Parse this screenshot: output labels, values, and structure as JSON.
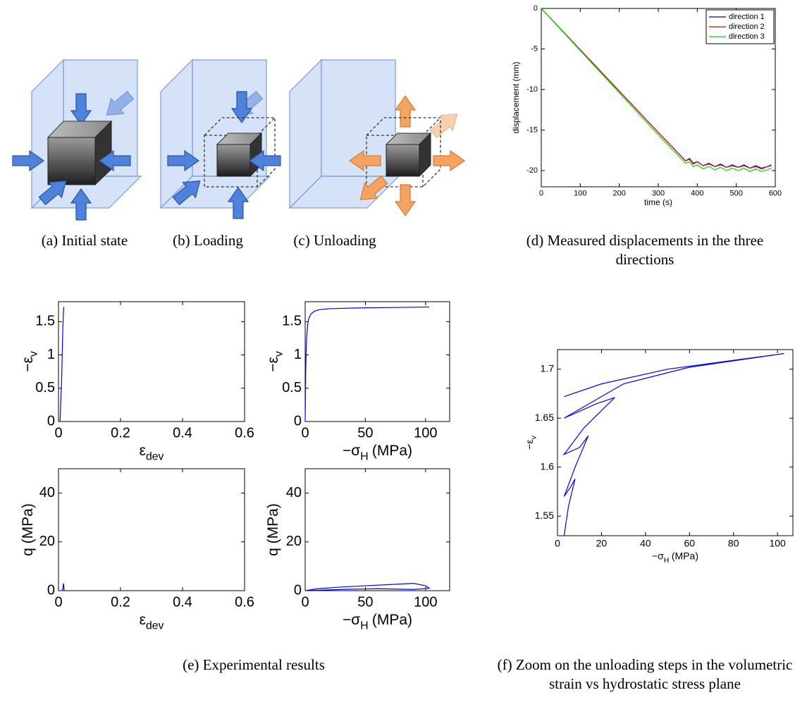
{
  "captions": {
    "a": "(a)  Initial state",
    "b": "(b)  Loading",
    "c": "(c)  Unloading",
    "d": "(d)  Measured displacements in the three directions",
    "e": "(e)  Experimental results",
    "f": "(f)  Zoom on the unloading steps in the volumetric strain vs hydrostatic stress plane"
  },
  "chart_data": [
    {
      "type": "line",
      "xlabel": "time (s)",
      "ylabel": "displacement (mm)",
      "x": [
        0,
        100,
        200,
        300,
        370,
        380,
        390,
        400,
        415,
        430,
        445,
        460,
        475,
        490,
        505,
        520,
        535,
        550,
        565,
        580,
        590
      ],
      "series": [
        {
          "name": "direction 1",
          "color": "#0000cc",
          "values": [
            0,
            -5.1,
            -10.2,
            -15.3,
            -18.8,
            -18.5,
            -19.1,
            -18.9,
            -19.4,
            -19.1,
            -19.5,
            -19.2,
            -19.6,
            -19.3,
            -19.6,
            -19.3,
            -19.7,
            -19.4,
            -19.7,
            -19.5,
            -19.3
          ]
        },
        {
          "name": "direction 2",
          "color": "#ee0000",
          "values": [
            0,
            -5.1,
            -10.2,
            -15.3,
            -18.8,
            -18.6,
            -19.2,
            -18.9,
            -19.4,
            -19.2,
            -19.5,
            -19.3,
            -19.6,
            -19.4,
            -19.6,
            -19.4,
            -19.7,
            -19.5,
            -19.8,
            -19.5,
            -19.4
          ]
        },
        {
          "name": "direction 3",
          "color": "#00dd00",
          "values": [
            0,
            -5.2,
            -10.4,
            -15.6,
            -19.1,
            -18.9,
            -19.5,
            -19.3,
            -19.8,
            -19.5,
            -19.9,
            -19.6,
            -20.0,
            -19.7,
            -20.0,
            -19.7,
            -20.1,
            -19.8,
            -20.1,
            -19.9,
            -19.7
          ]
        }
      ],
      "xlim": [
        0,
        600
      ],
      "ylim": [
        -22,
        0
      ],
      "xticks": [
        0,
        100,
        200,
        300,
        400,
        500,
        600
      ],
      "yticks": [
        0,
        -5,
        -10,
        -15,
        -20
      ],
      "legend": "upper right"
    },
    {
      "type": "line",
      "xlabel": "ε",
      "xlabel_sub": "dev",
      "ylabel": "−ε",
      "ylabel_sub": "v",
      "x": [
        0.005,
        0.008,
        0.01,
        0.012,
        0.014,
        0.016,
        0.017
      ],
      "series": [
        {
          "color": "#0000ff",
          "values": [
            0,
            0.4,
            0.6,
            1.0,
            1.4,
            1.65,
            1.72
          ]
        }
      ],
      "xlim": [
        0,
        0.6
      ],
      "ylim": [
        0,
        1.8
      ],
      "xticks": [
        0,
        0.2,
        0.4,
        0.6
      ],
      "yticks": [
        0,
        0.5,
        1,
        1.5
      ]
    },
    {
      "type": "line",
      "xlabel": "−σ",
      "xlabel_sub": "H",
      "xlabel_unit": "(MPa)",
      "ylabel": "−ε",
      "ylabel_sub": "v",
      "x": [
        0,
        0.5,
        1,
        2,
        3,
        5,
        8,
        12,
        20,
        40,
        70,
        103
      ],
      "series": [
        {
          "color": "#0000ff",
          "values": [
            0,
            0.8,
            1.2,
            1.45,
            1.55,
            1.62,
            1.66,
            1.68,
            1.695,
            1.705,
            1.712,
            1.72
          ]
        }
      ],
      "xlim": [
        0,
        120
      ],
      "ylim": [
        0,
        1.8
      ],
      "xticks": [
        0,
        50,
        100
      ],
      "yticks": [
        0,
        0.5,
        1,
        1.5
      ]
    },
    {
      "type": "line",
      "xlabel": "ε",
      "xlabel_sub": "dev",
      "ylabel": "q (MPa)",
      "x": [
        0.012,
        0.014,
        0.016,
        0.017,
        0.018
      ],
      "series": [
        {
          "color": "#0000ff",
          "values": [
            0,
            1,
            3,
            2,
            0
          ]
        }
      ],
      "xlim": [
        0,
        0.6
      ],
      "ylim": [
        0,
        50
      ],
      "xticks": [
        0,
        0.2,
        0.4,
        0.6
      ],
      "yticks": [
        0,
        20,
        40
      ]
    },
    {
      "type": "line",
      "xlabel": "−σ",
      "xlabel_sub": "H",
      "xlabel_unit": "(MPa)",
      "ylabel": "q (MPa)",
      "x": [
        0,
        10,
        30,
        50,
        70,
        90,
        100,
        103,
        90,
        60,
        30,
        0
      ],
      "series": [
        {
          "color": "#0000ff",
          "values": [
            0,
            0.8,
            1.5,
            2,
            2.5,
            3,
            2,
            1,
            0.5,
            0.8,
            0.5,
            0
          ]
        }
      ],
      "xlim": [
        0,
        120
      ],
      "ylim": [
        0,
        50
      ],
      "xticks": [
        0,
        50,
        100
      ],
      "yticks": [
        0,
        20,
        40
      ]
    },
    {
      "type": "line",
      "xlabel": "−σ",
      "xlabel_sub": "H",
      "xlabel_unit": "(MPa)",
      "ylabel": "−ε",
      "ylabel_sub": "v",
      "x": [
        3,
        5,
        8,
        6,
        3,
        8,
        14,
        10,
        3,
        12,
        26,
        18,
        3,
        30,
        60,
        103,
        50,
        20,
        3
      ],
      "series": [
        {
          "color": "#0000ff",
          "values": [
            1.53,
            1.56,
            1.588,
            1.58,
            1.57,
            1.6,
            1.632,
            1.62,
            1.613,
            1.64,
            1.671,
            1.665,
            1.65,
            1.685,
            1.702,
            1.716,
            1.7,
            1.685,
            1.672
          ]
        }
      ],
      "xlim": [
        0,
        107
      ],
      "ylim": [
        1.53,
        1.72
      ],
      "xticks": [
        0,
        20,
        40,
        60,
        80,
        100
      ],
      "yticks": [
        1.55,
        1.6,
        1.65,
        1.7
      ]
    }
  ]
}
